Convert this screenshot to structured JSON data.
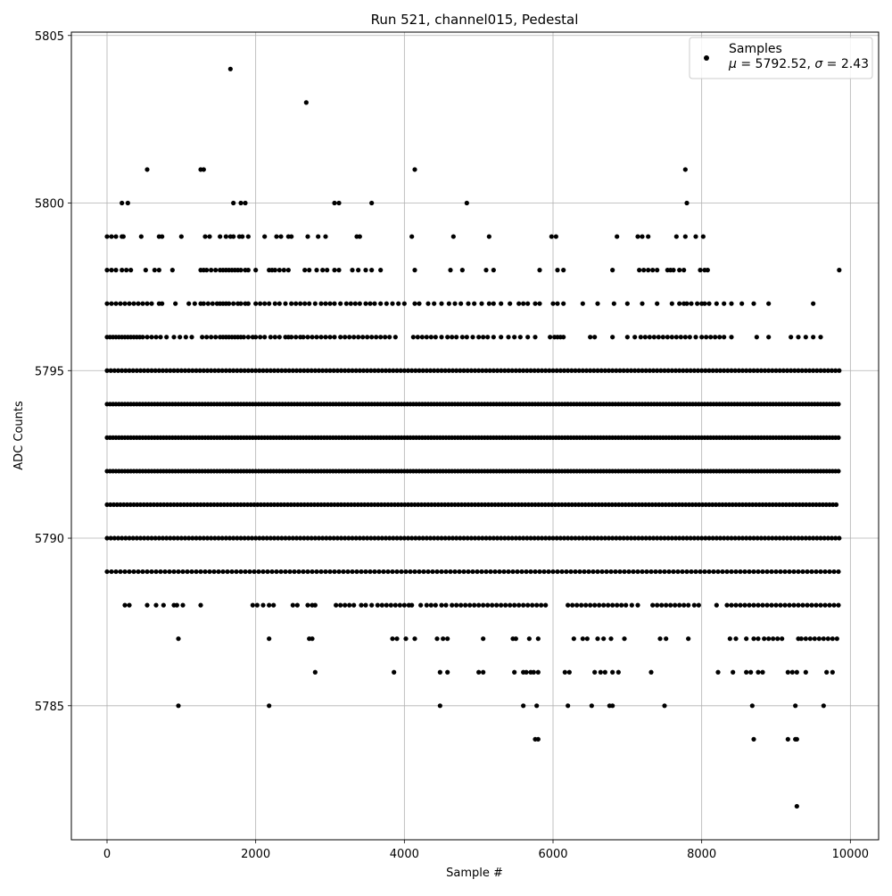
{
  "chart_data": {
    "type": "scatter",
    "title": "Run 521, channel015, Pedestal",
    "xlabel": "Sample #",
    "ylabel": "ADC Counts",
    "xlim": [
      -480,
      10380
    ],
    "ylim": [
      5781,
      5805.1
    ],
    "x_ticks": [
      0,
      2000,
      4000,
      6000,
      8000,
      10000
    ],
    "y_ticks": [
      5785,
      5790,
      5795,
      5800,
      5805
    ],
    "grid": true,
    "legend": {
      "placement": "top-right",
      "series_name": "Samples",
      "stats_mu_symbol": "μ",
      "stats_mu_value": " = 5792.52, ",
      "stats_sigma_symbol": "σ",
      "stats_sigma_value": " = 2.43"
    },
    "series": [
      {
        "name": "Samples",
        "color": "#000000",
        "sample_range": [
          0,
          9850
        ],
        "levels": [
          {
            "y": 5798,
            "x": [
              0,
              60,
              120,
              200,
              260,
              320,
              520,
              640,
              700,
              880,
              1260,
              1300,
              1340,
              1400,
              1460,
              1520,
              1560,
              1600,
              1640,
              1680,
              1720,
              1760,
              1800,
              1860,
              1900,
              2000,
              2180,
              2220,
              2260,
              2320,
              2380,
              2440,
              2660,
              2720,
              2820,
              2900,
              2960,
              3060,
              3120,
              3300,
              3380,
              3480,
              3560,
              3680,
              4140,
              4620,
              4780,
              5100,
              5200,
              5820,
              6060,
              6140,
              6800,
              7160,
              7220,
              7280,
              7340,
              7400,
              7540,
              7580,
              7620,
              7700,
              7760,
              7980,
              8040,
              8080,
              9850
            ]
          },
          {
            "y": 5797,
            "x": [
              0,
              60,
              120,
              180,
              240,
              300,
              360,
              420,
              480,
              540,
              600,
              700,
              740,
              920,
              1100,
              1180,
              1260,
              1300,
              1360,
              1420,
              1480,
              1520,
              1560,
              1600,
              1640,
              1700,
              1760,
              1800,
              1860,
              1900,
              2000,
              2060,
              2120,
              2180,
              2260,
              2320,
              2400,
              2480,
              2540,
              2600,
              2660,
              2720,
              2800,
              2880,
              2940,
              3000,
              3060,
              3140,
              3220,
              3280,
              3340,
              3400,
              3480,
              3540,
              3600,
              3680,
              3760,
              3840,
              3920,
              4000,
              4140,
              4200,
              4320,
              4400,
              4500,
              4600,
              4680,
              4760,
              4860,
              4940,
              5040,
              5140,
              5200,
              5300,
              5420,
              5540,
              5600,
              5660,
              5760,
              5820,
              6000,
              6060,
              6140,
              6400,
              6600,
              6820,
              7000,
              7200,
              7400,
              7600,
              7700,
              7760,
              7800,
              7860,
              7940,
              8000,
              8040,
              8100,
              8200,
              8300,
              8400,
              8540,
              8700,
              8900,
              9500
            ]
          },
          {
            "y": 5796,
            "x": [
              0,
              40,
              80,
              120,
              160,
              200,
              240,
              280,
              320,
              360,
              400,
              440,
              480,
              540,
              600,
              660,
              720,
              800,
              900,
              980,
              1060,
              1140,
              1280,
              1340,
              1400,
              1460,
              1520,
              1560,
              1600,
              1640,
              1680,
              1720,
              1760,
              1800,
              1840,
              1900,
              1960,
              2000,
              2060,
              2120,
              2200,
              2260,
              2320,
              2400,
              2440,
              2480,
              2540,
              2600,
              2640,
              2700,
              2760,
              2820,
              2880,
              2940,
              3000,
              3060,
              3140,
              3200,
              3260,
              3320,
              3380,
              3440,
              3500,
              3560,
              3620,
              3680,
              3740,
              3800,
              3880,
              4120,
              4180,
              4240,
              4300,
              4360,
              4420,
              4500,
              4580,
              4640,
              4700,
              4780,
              4840,
              4920,
              5000,
              5060,
              5120,
              5200,
              5300,
              5400,
              5480,
              5560,
              5660,
              5760,
              5960,
              6020,
              6060,
              6100,
              6140,
              6500,
              6560,
              6800,
              7000,
              7100,
              7180,
              7240,
              7300,
              7360,
              7420,
              7480,
              7540,
              7600,
              7660,
              7720,
              7780,
              7840,
              7920,
              8000,
              8060,
              8120,
              8180,
              8240,
              8300,
              8400,
              8740,
              8900,
              9200,
              9300,
              9400,
              9500,
              9600
            ]
          },
          {
            "y": 5795,
            "step": 50
          },
          {
            "y": 5794,
            "step": 40
          },
          {
            "y": 5793,
            "step": 40
          },
          {
            "y": 5792,
            "step": 40
          },
          {
            "y": 5791,
            "step": 45
          },
          {
            "y": 5790,
            "step": 50
          },
          {
            "y": 5789,
            "step": 60
          },
          {
            "y": 5788,
            "x": [
              240,
              300,
              540,
              660,
              760,
              900,
              940,
              1020,
              1260,
              1960,
              2020,
              2100,
              2180,
              2240,
              2500,
              2560,
              2700,
              2760,
              2800,
              3080,
              3140,
              3200,
              3260,
              3320,
              3420,
              3480,
              3560,
              3640,
              3700,
              3760,
              3820,
              3880,
              3940,
              4000,
              4060,
              4100,
              4220,
              4300,
              4360,
              4420,
              4500,
              4560,
              4640,
              4700,
              4760,
              4820,
              4880,
              4940,
              5000,
              5060,
              5120,
              5180,
              5240,
              5300,
              5360,
              5420,
              5480,
              5540,
              5600,
              5660,
              5720,
              5780,
              5840,
              5900,
              6200,
              6260,
              6320,
              6380,
              6440,
              6500,
              6560,
              6620,
              6680,
              6740,
              6800,
              6860,
              6920,
              6980,
              7060,
              7140,
              7340,
              7400,
              7460,
              7520,
              7580,
              7640,
              7700,
              7760,
              7820,
              7900,
              7960,
              8200,
              8340,
              8400,
              8460,
              8520,
              8580,
              8640,
              8700,
              8760,
              8820,
              8880,
              8940,
              9000,
              9060,
              9120,
              9180,
              9240,
              9300,
              9360,
              9420,
              9480,
              9540,
              9600,
              9660,
              9720,
              9780,
              9840
            ]
          },
          {
            "y": 5787,
            "x": [
              960,
              2180,
              2720,
              2760,
              3840,
              3900,
              4020,
              4140,
              4440,
              4520,
              4580,
              5060,
              5460,
              5500,
              5680,
              5800,
              6280,
              6400,
              6460,
              6600,
              6680,
              6780,
              6960,
              7440,
              7520,
              7820,
              8380,
              8460,
              8600,
              8700,
              8760,
              8840,
              8900,
              8960,
              9020,
              9080,
              9300,
              9340,
              9400,
              9460,
              9520,
              9580,
              9640,
              9700,
              9760,
              9820
            ]
          },
          {
            "y": 5786,
            "x": [
              2800,
              3860,
              4480,
              4580,
              5000,
              5060,
              5480,
              5600,
              5640,
              5700,
              5740,
              5800,
              6160,
              6220,
              6560,
              6640,
              6700,
              6800,
              6880,
              7320,
              8220,
              8420,
              8600,
              8660,
              8760,
              8820,
              9160,
              9220,
              9280,
              9400,
              9680,
              9760
            ]
          },
          {
            "y": 5785,
            "x": [
              960,
              2180,
              4480,
              5600,
              5780,
              6200,
              6520,
              6760,
              6800,
              7500,
              8680,
              9260,
              9640
            ]
          },
          {
            "y": 5784,
            "x": [
              5760,
              5800,
              8700,
              9160,
              9260,
              9280
            ]
          },
          {
            "y": 5782,
            "x": [
              9280
            ]
          },
          {
            "y": 5799,
            "x": [
              0,
              60,
              120,
              200,
              220,
              460,
              700,
              740,
              1000,
              1320,
              1380,
              1520,
              1600,
              1660,
              1700,
              1780,
              1820,
              1900,
              2120,
              2280,
              2340,
              2440,
              2480,
              2700,
              2840,
              2940,
              3360,
              3400,
              4100,
              4660,
              5140,
              5980,
              6040,
              6860,
              7140,
              7200,
              7280,
              7660,
              7780,
              7920,
              8020
            ]
          },
          {
            "y": 5800,
            "x": [
              200,
              280,
              1700,
              1800,
              1860,
              3060,
              3120,
              3560,
              4840,
              7800
            ]
          },
          {
            "y": 5801,
            "x": [
              540,
              1260,
              1300,
              4140,
              7780
            ]
          },
          {
            "y": 5803,
            "x": [
              2680
            ]
          },
          {
            "y": 5804,
            "x": [
              1660
            ]
          }
        ]
      }
    ]
  }
}
